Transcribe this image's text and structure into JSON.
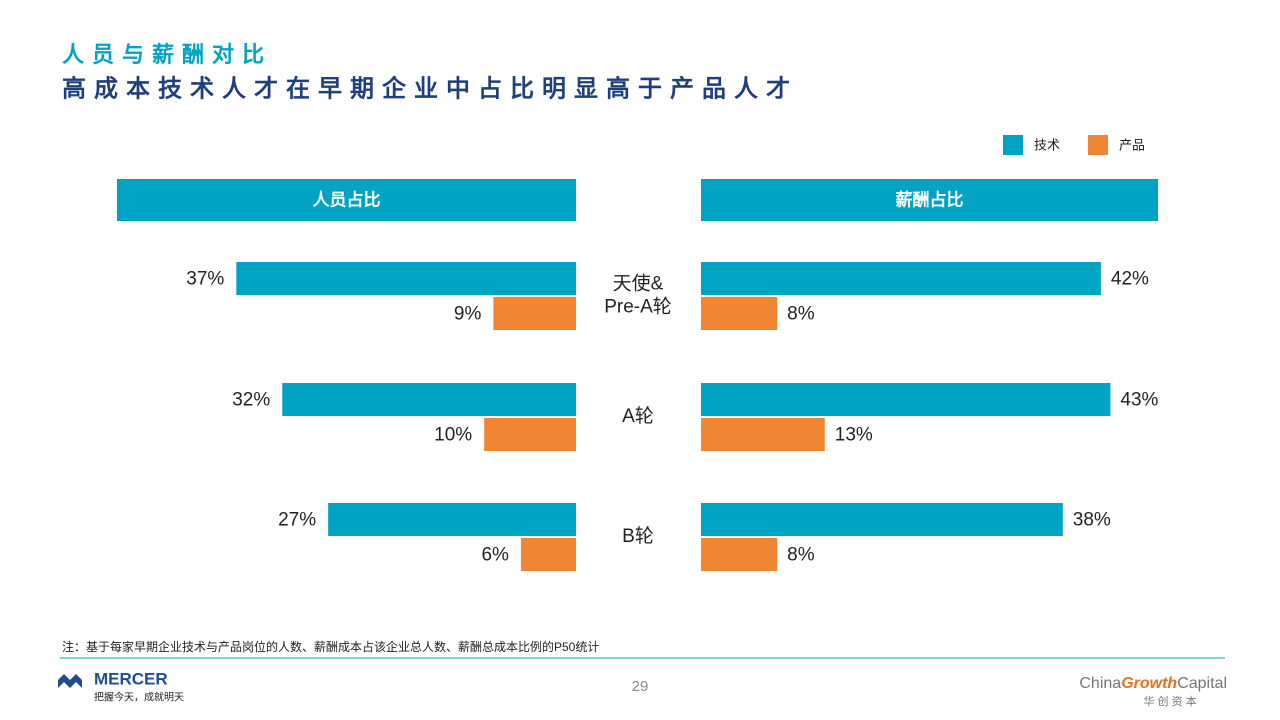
{
  "header": {
    "title": "人员与薪酬对比",
    "subtitle": "高成本技术人才在早期企业中占比明显高于产品人才"
  },
  "chart_data": [
    {
      "type": "bar",
      "direction": "left",
      "title": "人员占比",
      "categories": [
        "天使&\nPre-A轮",
        "A轮",
        "B轮"
      ],
      "series": [
        {
          "name": "技术",
          "color": "#00a3c4",
          "values": [
            37,
            32,
            27
          ],
          "value_labels": [
            "37%",
            "32%",
            "27%"
          ]
        },
        {
          "name": "产品",
          "color": "#f08534",
          "values": [
            9,
            10,
            6
          ],
          "value_labels": [
            "9%",
            "10%",
            "6%"
          ]
        }
      ],
      "xlim": [
        0,
        50
      ]
    },
    {
      "type": "bar",
      "direction": "right",
      "title": "薪酬占比",
      "series": [
        {
          "color": "#00a3c4",
          "values": [
            42,
            43,
            38
          ],
          "value_labels": [
            "42%",
            "43%",
            "38%"
          ]
        },
        {
          "color": "#f08534",
          "values": [
            8,
            13,
            8
          ],
          "value_labels": [
            "8%",
            "13%",
            "8%"
          ]
        }
      ],
      "xlim": [
        0,
        48
      ]
    }
  ],
  "footnote": "注：基于每家早期企业技术与产品岗位的人数、薪酬成本占该企业总人数、薪酬总成本比例的P50统计",
  "footer": {
    "page_number": "29",
    "mercer": "MERCER",
    "mercer_slogan": "把握今天，成就明天",
    "brand": [
      "China",
      "Growth",
      "Capital"
    ],
    "brand_cn": "华 创 资 本"
  }
}
